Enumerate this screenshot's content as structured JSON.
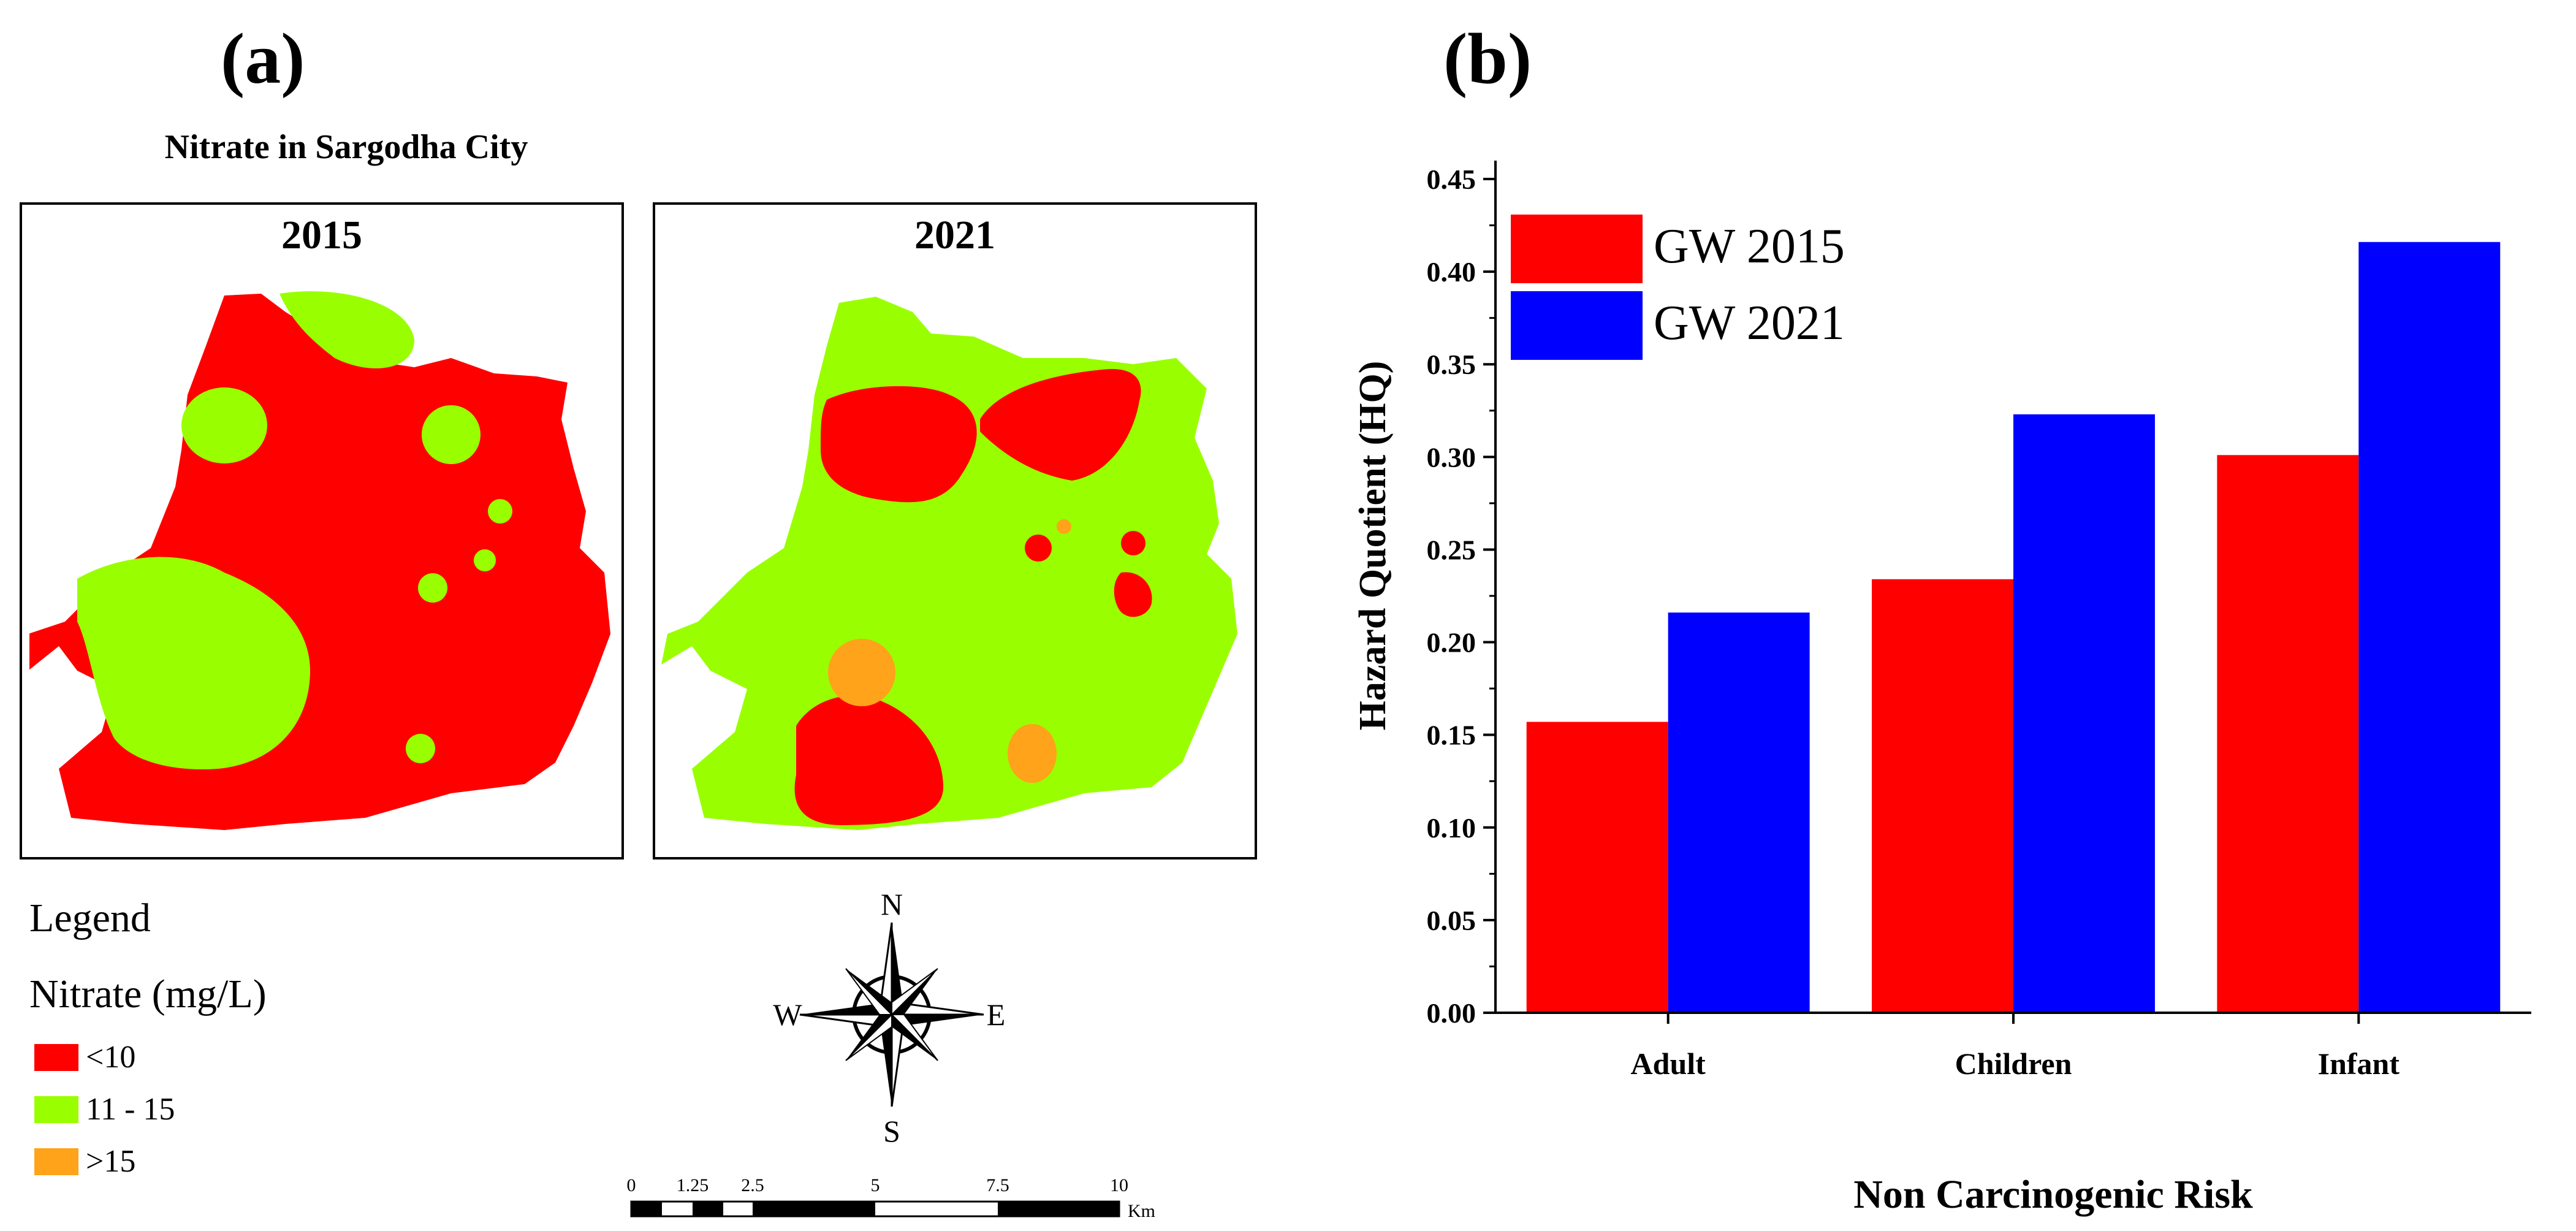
{
  "panels": {
    "a_label": "(a)",
    "b_label": "(b)"
  },
  "map": {
    "title": "Nitrate in Sargodha City",
    "maps": [
      {
        "year": "2015"
      },
      {
        "year": "2021"
      }
    ],
    "colors": {
      "low": "#ff0000",
      "mid": "#99ff00",
      "high": "#ffa31a"
    },
    "legend": {
      "title": "Legend",
      "subtitle": "Nitrate (mg/L)",
      "items": [
        {
          "label": "<10",
          "color": "#ff0000"
        },
        {
          "label": "11 - 15",
          "color": "#99ff00"
        },
        {
          "label": ">15",
          "color": "#ffa31a"
        }
      ]
    },
    "compass": {
      "n": "N",
      "s": "S",
      "e": "E",
      "w": "W"
    },
    "scale_bar": {
      "ticks": [
        "0",
        "1.25",
        "2.5",
        "5",
        "7.5",
        "10"
      ],
      "unit": "Km"
    }
  },
  "chart_data": {
    "type": "bar",
    "title": "",
    "xlabel": "Non Carcinogenic Risk",
    "ylabel": "Hazard Quotient (HQ)",
    "ylim": [
      0,
      0.45
    ],
    "yticks": [
      "0.00",
      "0.05",
      "0.10",
      "0.15",
      "0.20",
      "0.25",
      "0.30",
      "0.35",
      "0.40",
      "0.45"
    ],
    "categories": [
      "Adult",
      "Children",
      "Infant"
    ],
    "series": [
      {
        "name": "GW 2015",
        "color": "#ff0000",
        "values": [
          0.157,
          0.234,
          0.301
        ]
      },
      {
        "name": "GW 2021",
        "color": "#0000ff",
        "values": [
          0.216,
          0.323,
          0.416
        ]
      }
    ],
    "legend_position": "top-left"
  }
}
